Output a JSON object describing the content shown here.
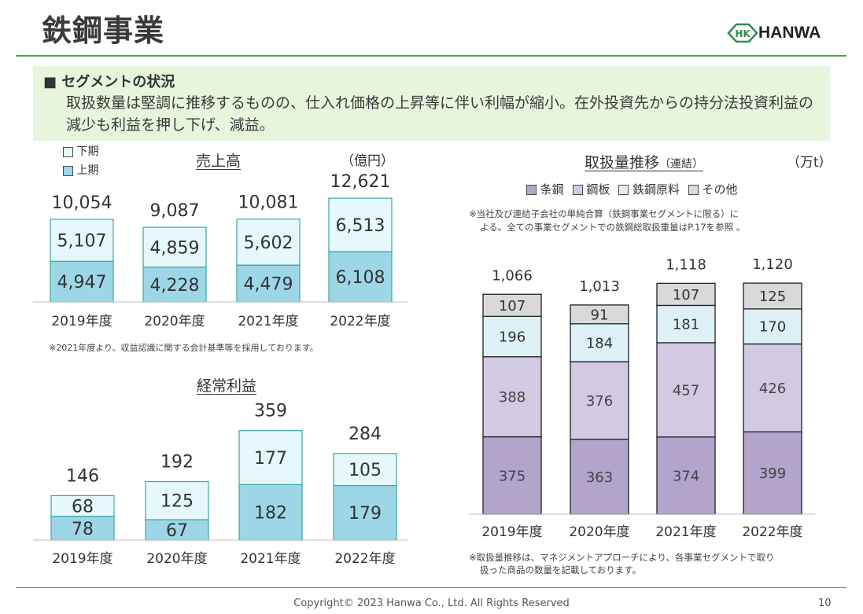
{
  "header": {
    "title": "鉄鋼事業",
    "brand": "HANWA",
    "logo_mark": "HK"
  },
  "summary": {
    "heading": "■ セグメントの状況",
    "text": "取扱数量は堅調に推移するものの、仕入れ価格の上昇等に伴い利幅が縮小。在外投資先からの持分法投資利益の減少も利益を押し下げ、減益。"
  },
  "sales_chart": {
    "title": "売上高",
    "unit": "（億円）",
    "legend": [
      "下期",
      "上期"
    ],
    "colors": {
      "lower_half": "#9dd7e7",
      "upper_half": "#e6f8fb",
      "stroke": "#3aa6a2"
    }
  },
  "profit_chart": {
    "title": "経常利益"
  },
  "volume_chart": {
    "title": "取扱量推移",
    "title_suffix": "（連結）",
    "unit": "（万t）",
    "legend": [
      "条鋼",
      "鋼板",
      "鉄鋼原料",
      "その他"
    ],
    "colors": [
      "#b3a4cc",
      "#d2c9e2",
      "#dcf0f6",
      "#d9d9d9"
    ],
    "note_top": "※当社及び連結子会社の単純合算（鉄鋼事業セグメントに限る）によ る。全ての事業セグメントでの鉄鋼総取扱重量はP.17を参照 。",
    "note_top_line1": "※当社及び連結子会社の単純合算（鉄鋼事業セグメントに限る）に",
    "note_top_line2": "よる。全ての事業セグメントでの鉄鋼総取扱重量はP.17を参照 。",
    "note_bottom_line1": "※取扱量推移は、マネジメントアプローチにより、各事業セグメントで取り",
    "note_bottom_line2": "扱った商品の数量を記載しております。"
  },
  "sales_note": "※2021年度より、収益認識に関する会計基準等を採用しております。",
  "chart_data": [
    {
      "type": "bar",
      "title": "売上高",
      "unit": "億円",
      "stacked": true,
      "categories": [
        "2019年度",
        "2020年度",
        "2021年度",
        "2022年度"
      ],
      "series": [
        {
          "name": "上期",
          "values": [
            4947,
            4228,
            4479,
            6108
          ]
        },
        {
          "name": "下期",
          "values": [
            5107,
            4859,
            5602,
            6513
          ]
        }
      ],
      "totals": [
        10054,
        9087,
        10081,
        12621
      ],
      "display": {
        "totals": [
          "10,054",
          "9,087",
          "10,081",
          "12,621"
        ],
        "upper": [
          "4,947",
          "4,228",
          "4,479",
          "6,108"
        ],
        "lower": [
          "5,107",
          "4,859",
          "5,602",
          "6,513"
        ]
      }
    },
    {
      "type": "bar",
      "title": "経常利益",
      "stacked": true,
      "categories": [
        "2019年度",
        "2020年度",
        "2021年度",
        "2022年度"
      ],
      "series": [
        {
          "name": "上期",
          "values": [
            78,
            67,
            182,
            179
          ]
        },
        {
          "name": "下期",
          "values": [
            68,
            125,
            177,
            105
          ]
        }
      ],
      "totals": [
        146,
        192,
        359,
        284
      ]
    },
    {
      "type": "bar",
      "title": "取扱量推移（連結）",
      "unit": "万t",
      "stacked": true,
      "categories": [
        "2019年度",
        "2020年度",
        "2021年度",
        "2022年度"
      ],
      "series": [
        {
          "name": "条鋼",
          "values": [
            375,
            363,
            374,
            399
          ]
        },
        {
          "name": "鋼板",
          "values": [
            388,
            376,
            457,
            426
          ]
        },
        {
          "name": "鉄鋼原料",
          "values": [
            196,
            184,
            181,
            170
          ]
        },
        {
          "name": "その他",
          "values": [
            107,
            91,
            107,
            125
          ]
        }
      ],
      "totals": [
        1066,
        1013,
        1118,
        1120
      ],
      "display": {
        "totals": [
          "1,066",
          "1,013",
          "1,118",
          "1,120"
        ]
      }
    }
  ],
  "footer": {
    "copyright": "Copyright© 2023 Hanwa Co., Ltd. All Rights Reserved",
    "page": "10"
  }
}
